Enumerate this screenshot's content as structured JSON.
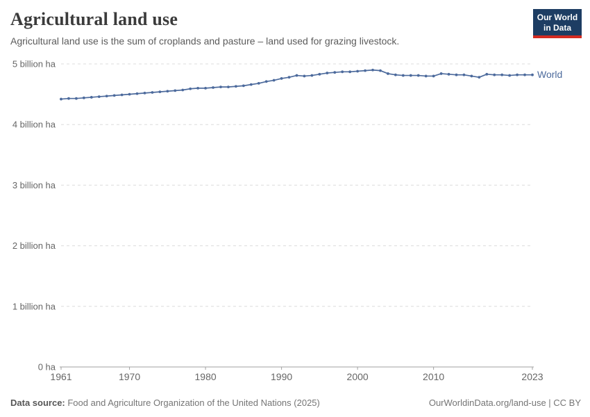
{
  "header": {
    "title": "Agricultural land use",
    "subtitle": "Agricultural land use is the sum of croplands and pasture – land used for grazing livestock.",
    "logo": {
      "line1": "Our World",
      "line2": "in Data",
      "bg_color": "#1d3d63",
      "bar_color": "#d42b21"
    }
  },
  "chart_data": {
    "type": "line",
    "title": "Agricultural land use",
    "unit": "billion ha",
    "grid": "horizontal-dashed",
    "legend_position": "end-of-line",
    "xlim": [
      1961,
      2023
    ],
    "ylim": [
      0,
      5
    ],
    "x_ticks": [
      1961,
      1970,
      1980,
      1990,
      2000,
      2010,
      2023
    ],
    "y_ticks": [
      {
        "value": 0,
        "label": "0 ha"
      },
      {
        "value": 1,
        "label": "1 billion ha"
      },
      {
        "value": 2,
        "label": "2 billion ha"
      },
      {
        "value": 3,
        "label": "3 billion ha"
      },
      {
        "value": 4,
        "label": "4 billion ha"
      },
      {
        "value": 5,
        "label": "5 billion ha"
      }
    ],
    "x": [
      1961,
      1962,
      1963,
      1964,
      1965,
      1966,
      1967,
      1968,
      1969,
      1970,
      1971,
      1972,
      1973,
      1974,
      1975,
      1976,
      1977,
      1978,
      1979,
      1980,
      1981,
      1982,
      1983,
      1984,
      1985,
      1986,
      1987,
      1988,
      1989,
      1990,
      1991,
      1992,
      1993,
      1994,
      1995,
      1996,
      1997,
      1998,
      1999,
      2000,
      2001,
      2002,
      2003,
      2004,
      2005,
      2006,
      2007,
      2008,
      2009,
      2010,
      2011,
      2012,
      2013,
      2014,
      2015,
      2016,
      2017,
      2018,
      2019,
      2020,
      2021,
      2022,
      2023
    ],
    "series": [
      {
        "name": "World",
        "color": "#4c6a9c",
        "values": [
          4.42,
          4.43,
          4.43,
          4.44,
          4.45,
          4.46,
          4.47,
          4.48,
          4.49,
          4.5,
          4.51,
          4.52,
          4.53,
          4.54,
          4.55,
          4.56,
          4.57,
          4.59,
          4.6,
          4.6,
          4.61,
          4.62,
          4.62,
          4.63,
          4.64,
          4.66,
          4.68,
          4.71,
          4.73,
          4.76,
          4.78,
          4.81,
          4.8,
          4.81,
          4.83,
          4.85,
          4.86,
          4.87,
          4.87,
          4.88,
          4.89,
          4.9,
          4.89,
          4.84,
          4.82,
          4.81,
          4.81,
          4.81,
          4.8,
          4.8,
          4.84,
          4.83,
          4.82,
          4.82,
          4.8,
          4.78,
          4.83,
          4.82,
          4.82,
          4.81,
          4.82,
          4.82,
          4.82
        ]
      }
    ]
  },
  "footer": {
    "source_label": "Data source:",
    "source_text": " Food and Agriculture Organization of the United Nations (2025)",
    "credit": "OurWorldinData.org/land-use | CC BY"
  },
  "colors": {
    "title": "#3b3b3b",
    "subtitle": "#5b5b5b",
    "axis_labels": "#666666",
    "gridline": "#dcdcdc",
    "axis_line": "#a1a1a1",
    "series_world": "#4c6a9c",
    "logo_bg": "#1d3d63",
    "logo_bar": "#d42b21"
  }
}
